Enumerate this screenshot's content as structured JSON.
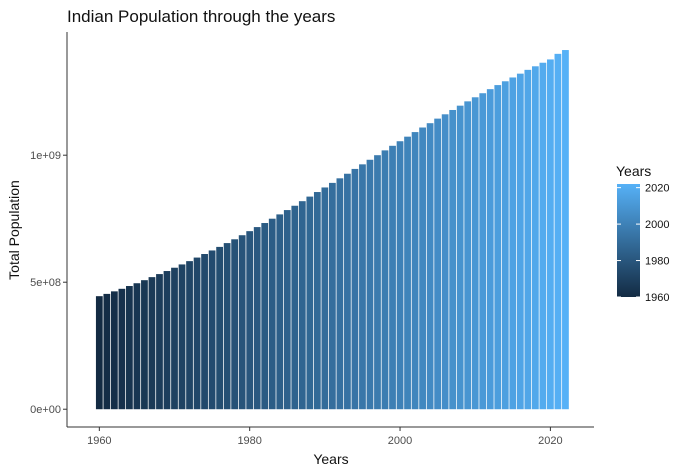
{
  "chart_data": {
    "type": "bar",
    "title": "Indian Population through the years",
    "xlabel": "Years",
    "ylabel": "Total Population",
    "x": [
      1960,
      1961,
      1962,
      1963,
      1964,
      1965,
      1966,
      1967,
      1968,
      1969,
      1970,
      1971,
      1972,
      1973,
      1974,
      1975,
      1976,
      1977,
      1978,
      1979,
      1980,
      1981,
      1982,
      1983,
      1984,
      1985,
      1986,
      1987,
      1988,
      1989,
      1990,
      1991,
      1992,
      1993,
      1994,
      1995,
      1996,
      1997,
      1998,
      1999,
      2000,
      2001,
      2002,
      2003,
      2004,
      2005,
      2006,
      2007,
      2008,
      2009,
      2010,
      2011,
      2012,
      2013,
      2014,
      2015,
      2016,
      2017,
      2018,
      2019,
      2020,
      2021,
      2022
    ],
    "values": [
      445000000,
      454000000,
      464000000,
      474000000,
      485000000,
      496000000,
      508000000,
      520000000,
      532000000,
      544000000,
      557000000,
      570000000,
      583000000,
      597000000,
      611000000,
      625000000,
      639000000,
      654000000,
      669000000,
      685000000,
      701000000,
      717000000,
      733000000,
      750000000,
      767000000,
      784000000,
      801000000,
      819000000,
      837000000,
      855000000,
      873000000,
      891000000,
      909000000,
      927000000,
      946000000,
      964000000,
      982000000,
      1000000000,
      1019000000,
      1037000000,
      1055000000,
      1073000000,
      1091000000,
      1109000000,
      1126000000,
      1144000000,
      1161000000,
      1178000000,
      1195000000,
      1212000000,
      1228000000,
      1244000000,
      1260000000,
      1276000000,
      1291000000,
      1306000000,
      1321000000,
      1336000000,
      1350000000,
      1364000000,
      1377000000,
      1399000000,
      1414000000
    ],
    "xlim": [
      1955.7,
      2025.8
    ],
    "ylim": [
      -70000000,
      1485000000
    ],
    "x_ticks": [
      1960,
      1980,
      2000,
      2020
    ],
    "x_tick_labels": [
      "1960",
      "1980",
      "2000",
      "2020"
    ],
    "y_ticks": [
      0,
      500000000,
      1000000000
    ],
    "y_tick_labels": [
      "0e+00",
      "5e+08",
      "1e+09"
    ],
    "grid": false,
    "legend": {
      "title": "Years",
      "placement": "right",
      "type": "colorbar",
      "ticks": [
        1960,
        1980,
        2000,
        2020
      ],
      "tick_labels": [
        "1960",
        "1980",
        "2000",
        "2020"
      ],
      "range": [
        1960,
        2022
      ]
    },
    "colors": {
      "low": "#132B43",
      "high": "#56B1F7"
    }
  }
}
